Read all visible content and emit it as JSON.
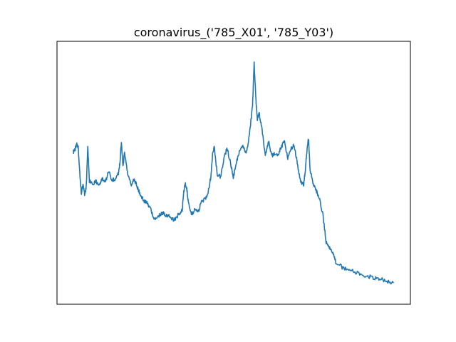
{
  "chart_data": {
    "type": "line",
    "title": "coronavirus_('785_X01', '785_Y03')",
    "xlabel": "",
    "ylabel": "",
    "xticks_visible": false,
    "yticks_visible": false,
    "grid": false,
    "xlim": [
      0,
      100
    ],
    "ylim": [
      0,
      100
    ],
    "series": [
      {
        "color": "#1f77b4",
        "x": [
          0,
          0.5,
          1,
          1.5,
          2,
          2.5,
          3,
          3.5,
          4,
          4.5,
          5,
          6,
          7,
          8,
          9,
          10,
          11,
          12,
          13,
          14,
          14.5,
          15,
          15.5,
          16,
          17,
          18,
          19,
          20,
          21,
          22,
          23,
          24,
          25,
          26,
          27,
          28,
          29,
          30,
          31,
          32,
          33,
          34,
          34.5,
          35,
          35.5,
          36,
          37,
          38,
          39,
          40,
          41,
          42,
          43,
          43.5,
          44,
          45,
          46,
          47,
          48,
          49,
          50,
          51,
          52,
          53,
          54,
          55,
          56,
          56.5,
          57,
          57.5,
          58,
          59,
          60,
          61,
          62,
          63,
          64,
          65,
          66,
          67,
          68,
          69,
          70,
          71,
          72,
          72.5,
          73,
          73.5,
          74,
          75,
          76,
          77,
          78,
          79,
          80,
          81,
          82,
          84,
          86,
          88,
          90,
          92,
          94,
          96,
          98,
          100
        ],
        "y": [
          58.5,
          59.5,
          62,
          60.5,
          49.5,
          41,
          45.3,
          41,
          43.5,
          60.5,
          46.5,
          45,
          46.5,
          44.5,
          47.5,
          46,
          50.5,
          47,
          47.2,
          49.2,
          53.5,
          62.5,
          52.5,
          58.5,
          48.9,
          44.8,
          47.3,
          43.7,
          40.7,
          38.3,
          37.4,
          35.3,
          31,
          30.4,
          32.2,
          33,
          32,
          31.8,
          30.2,
          30.4,
          32.8,
          34.2,
          41.7,
          45.5,
          42.5,
          37,
          32.6,
          34.5,
          33.5,
          37.5,
          38.8,
          40.6,
          48.5,
          57.2,
          61,
          48.9,
          48.3,
          55.5,
          60,
          54.8,
          47.8,
          54.6,
          59.5,
          61.3,
          57.5,
          65.6,
          77.8,
          95.8,
          82,
          71.8,
          75.2,
          67.8,
          56.9,
          63.2,
          57,
          58.2,
          57.4,
          60.7,
          63,
          55.7,
          59.9,
          61.6,
          53.6,
          46.2,
          44.8,
          51.1,
          59.2,
          64.4,
          51,
          45.2,
          42.2,
          38.5,
          32.4,
          21,
          18.3,
          17,
          12.7,
          10.4,
          9.4,
          8.3,
          7.5,
          6.7,
          5.9,
          5.4,
          4.5,
          4
        ]
      }
    ]
  }
}
